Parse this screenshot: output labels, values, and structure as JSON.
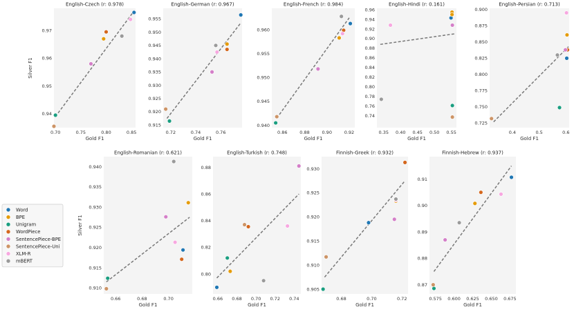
{
  "chart_data": {
    "type": "scatter",
    "xlabel": "Gold F1",
    "ylabel": "Silver F1",
    "legend": {
      "position": "left",
      "entries": [
        {
          "key": "word",
          "label": "Word",
          "color": "#1f77b4"
        },
        {
          "key": "bpe",
          "label": "BPE",
          "color": "#e59c0b"
        },
        {
          "key": "unigram",
          "label": "Unigram",
          "color": "#1a9e80"
        },
        {
          "key": "wordpiece",
          "label": "WordPiece",
          "color": "#d4671e"
        },
        {
          "key": "sp_bpe",
          "label": "SentencePiece-BPE",
          "color": "#d47fc8"
        },
        {
          "key": "sp_uni",
          "label": "SentencePiece-Uni",
          "color": "#cd9466"
        },
        {
          "key": "xlmr",
          "label": "XLM-R",
          "color": "#f7a8e0"
        },
        {
          "key": "mbert",
          "label": "mBERT",
          "color": "#9a9a9a"
        }
      ]
    },
    "panels": [
      {
        "title": "English-Czech (r: 0.978)",
        "xlim": [
          0.697,
          0.858
        ],
        "ylim": [
          0.935,
          0.978
        ],
        "xticks": [
          0.7,
          0.75,
          0.8,
          0.85
        ],
        "xtick_labels": [
          "0.70",
          "0.75",
          "0.80",
          "0.85"
        ],
        "yticks": [
          0.94,
          0.95,
          0.96,
          0.97
        ],
        "ytick_labels": [
          "0.94",
          "0.95",
          "0.96",
          "0.97"
        ],
        "show_ylabel": true,
        "fit": [
          [
            0.7,
            0.939
          ],
          [
            0.855,
            0.977
          ]
        ],
        "points": [
          {
            "series": "word",
            "x": 0.855,
            "y": 0.9765
          },
          {
            "series": "bpe",
            "x": 0.795,
            "y": 0.967
          },
          {
            "series": "unigram",
            "x": 0.7,
            "y": 0.9395
          },
          {
            "series": "wordpiece",
            "x": 0.8,
            "y": 0.9695
          },
          {
            "series": "sp_bpe",
            "x": 0.77,
            "y": 0.958
          },
          {
            "series": "sp_uni",
            "x": 0.697,
            "y": 0.9355
          },
          {
            "series": "xlmr",
            "x": 0.848,
            "y": 0.974
          },
          {
            "series": "mbert",
            "x": 0.831,
            "y": 0.968
          }
        ]
      },
      {
        "title": "English-German (r: 0.967)",
        "xlim": [
          0.714,
          0.777
        ],
        "ylim": [
          0.914,
          0.959
        ],
        "xticks": [
          0.72,
          0.74,
          0.76
        ],
        "xtick_labels": [
          "0.72",
          "0.74",
          "0.76"
        ],
        "yticks": [
          0.915,
          0.92,
          0.925,
          0.93,
          0.935,
          0.94,
          0.945,
          0.95,
          0.955
        ],
        "ytick_labels": [
          "0.915",
          "0.920",
          "0.925",
          "0.930",
          "0.935",
          "0.940",
          "0.945",
          "0.950",
          "0.955"
        ],
        "show_ylabel": false,
        "fit": [
          [
            0.717,
            0.9175
          ],
          [
            0.776,
            0.9535
          ]
        ],
        "points": [
          {
            "series": "word",
            "x": 0.776,
            "y": 0.9565
          },
          {
            "series": "bpe",
            "x": 0.765,
            "y": 0.9455
          },
          {
            "series": "unigram",
            "x": 0.719,
            "y": 0.9165
          },
          {
            "series": "wordpiece",
            "x": 0.765,
            "y": 0.9435
          },
          {
            "series": "sp_bpe",
            "x": 0.753,
            "y": 0.935
          },
          {
            "series": "sp_uni",
            "x": 0.716,
            "y": 0.921
          },
          {
            "series": "xlmr",
            "x": 0.757,
            "y": 0.9425
          },
          {
            "series": "mbert",
            "x": 0.756,
            "y": 0.945
          }
        ]
      },
      {
        "title": "English-French (r: 0.984)",
        "xlim": [
          0.8505,
          0.925
        ],
        "ylim": [
          0.9395,
          0.9645
        ],
        "xticks": [
          0.86,
          0.88,
          0.9,
          0.92
        ],
        "xtick_labels": [
          "0.86",
          "0.88",
          "0.90",
          "0.92"
        ],
        "yticks": [
          0.94,
          0.945,
          0.95,
          0.955,
          0.96
        ],
        "ytick_labels": [
          "0.940",
          "0.945",
          "0.950",
          "0.955",
          "0.960"
        ],
        "show_ylabel": false,
        "fit": [
          [
            0.855,
            0.9415
          ],
          [
            0.92,
            0.9625
          ]
        ],
        "points": [
          {
            "series": "word",
            "x": 0.921,
            "y": 0.9613
          },
          {
            "series": "bpe",
            "x": 0.911,
            "y": 0.9583
          },
          {
            "series": "unigram",
            "x": 0.854,
            "y": 0.9405
          },
          {
            "series": "wordpiece",
            "x": 0.915,
            "y": 0.9599
          },
          {
            "series": "sp_bpe",
            "x": 0.892,
            "y": 0.9518
          },
          {
            "series": "sp_uni",
            "x": 0.855,
            "y": 0.9418
          },
          {
            "series": "xlmr",
            "x": 0.914,
            "y": 0.9592
          },
          {
            "series": "mbert",
            "x": 0.913,
            "y": 0.9628
          }
        ]
      },
      {
        "title": "English-Hindi (r: 0.161)",
        "xlim": [
          0.33,
          0.565
        ],
        "ylim": [
          0.715,
          0.963
        ],
        "xticks": [
          0.35,
          0.4,
          0.45,
          0.5,
          0.55
        ],
        "xtick_labels": [
          "0.35",
          "0.40",
          "0.45",
          "0.50",
          "0.55"
        ],
        "yticks": [
          0.74,
          0.76,
          0.78,
          0.8,
          0.82,
          0.84,
          0.86,
          0.88,
          0.9,
          0.92,
          0.94,
          0.96
        ],
        "ytick_labels": [
          "0.74",
          "0.76",
          "0.78",
          "0.80",
          "0.82",
          "0.84",
          "0.86",
          "0.88",
          "0.90",
          "0.92",
          "0.94",
          "0.96"
        ],
        "show_ylabel": false,
        "fit": [
          [
            0.34,
            0.888
          ],
          [
            0.56,
            0.91
          ]
        ],
        "points": [
          {
            "series": "word",
            "x": 0.549,
            "y": 0.943
          },
          {
            "series": "bpe",
            "x": 0.552,
            "y": 0.955
          },
          {
            "series": "bpe",
            "x": 0.552,
            "y": 0.95
          },
          {
            "series": "unigram",
            "x": 0.553,
            "y": 0.761
          },
          {
            "series": "sp_bpe",
            "x": 0.553,
            "y": 0.928
          },
          {
            "series": "sp_uni",
            "x": 0.553,
            "y": 0.737
          },
          {
            "series": "xlmr",
            "x": 0.37,
            "y": 0.928
          },
          {
            "series": "mbert",
            "x": 0.343,
            "y": 0.774
          }
        ]
      },
      {
        "title": "English-Persian (r: 0.713)",
        "xlim": [
          0.315,
          0.612
        ],
        "ylim": [
          0.718,
          0.902
        ],
        "xticks": [
          0.4,
          0.5,
          0.6
        ],
        "xtick_labels": [
          "0.4",
          "0.5",
          "0.6"
        ],
        "yticks": [
          0.725,
          0.75,
          0.775,
          0.8,
          0.825,
          0.85,
          0.875,
          0.9
        ],
        "ytick_labels": [
          "0.725",
          "0.750",
          "0.775",
          "0.800",
          "0.825",
          "0.850",
          "0.875",
          "0.900"
        ],
        "show_ylabel": false,
        "fit": [
          [
            0.33,
            0.727
          ],
          [
            0.61,
            0.843
          ]
        ],
        "points": [
          {
            "series": "word",
            "x": 0.603,
            "y": 0.825
          },
          {
            "series": "bpe",
            "x": 0.604,
            "y": 0.861
          },
          {
            "series": "unigram",
            "x": 0.576,
            "y": 0.749
          },
          {
            "series": "wordpiece",
            "x": 0.606,
            "y": 0.838
          },
          {
            "series": "sp_bpe",
            "x": 0.598,
            "y": 0.838
          },
          {
            "series": "sp_uni",
            "x": 0.322,
            "y": 0.732
          },
          {
            "series": "xlmr",
            "x": 0.602,
            "y": 0.895
          },
          {
            "series": "mbert",
            "x": 0.568,
            "y": 0.83
          }
        ]
      },
      {
        "title": "English-Romanian (r: 0.621)",
        "xlim": [
          0.651,
          0.718
        ],
        "ylim": [
          0.9085,
          0.9425
        ],
        "xticks": [
          0.66,
          0.68,
          0.7
        ],
        "xtick_labels": [
          "0.66",
          "0.68",
          "0.70"
        ],
        "yticks": [
          0.91,
          0.915,
          0.92,
          0.925,
          0.93,
          0.935,
          0.94
        ],
        "ytick_labels": [
          "0.910",
          "0.915",
          "0.920",
          "0.925",
          "0.930",
          "0.935",
          "0.940"
        ],
        "show_ylabel": true,
        "fit": [
          [
            0.653,
            0.9115
          ],
          [
            0.716,
            0.9275
          ]
        ],
        "points": [
          {
            "series": "word",
            "x": 0.711,
            "y": 0.9194
          },
          {
            "series": "bpe",
            "x": 0.715,
            "y": 0.9311
          },
          {
            "series": "unigram",
            "x": 0.654,
            "y": 0.9124
          },
          {
            "series": "wordpiece",
            "x": 0.71,
            "y": 0.9171
          },
          {
            "series": "sp_bpe",
            "x": 0.698,
            "y": 0.9276
          },
          {
            "series": "sp_uni",
            "x": 0.653,
            "y": 0.9098
          },
          {
            "series": "xlmr",
            "x": 0.705,
            "y": 0.9213
          },
          {
            "series": "mbert",
            "x": 0.704,
            "y": 0.9413
          }
        ]
      },
      {
        "title": "English-Turkish (r: 0.748)",
        "xlim": [
          0.655,
          0.747
        ],
        "ylim": [
          0.785,
          0.888
        ],
        "xticks": [
          0.66,
          0.68,
          0.7,
          0.72,
          0.74
        ],
        "xtick_labels": [
          "0.66",
          "0.68",
          "0.70",
          "0.72",
          "0.74"
        ],
        "yticks": [
          0.8,
          0.82,
          0.84,
          0.86,
          0.88
        ],
        "ytick_labels": [
          "0.80",
          "0.82",
          "0.84",
          "0.86",
          "0.88"
        ],
        "show_ylabel": false,
        "fit": [
          [
            0.659,
            0.797
          ],
          [
            0.745,
            0.86
          ]
        ],
        "points": [
          {
            "series": "word",
            "x": 0.659,
            "y": 0.79
          },
          {
            "series": "bpe",
            "x": 0.673,
            "y": 0.802
          },
          {
            "series": "unigram",
            "x": 0.67,
            "y": 0.812
          },
          {
            "series": "wordpiece",
            "x": 0.692,
            "y": 0.8355
          },
          {
            "series": "sp_bpe",
            "x": 0.745,
            "y": 0.881
          },
          {
            "series": "sp_uni",
            "x": 0.688,
            "y": 0.837
          },
          {
            "series": "xlmr",
            "x": 0.733,
            "y": 0.836
          },
          {
            "series": "mbert",
            "x": 0.708,
            "y": 0.795
          }
        ]
      },
      {
        "title": "Finnish-Greek (r: 0.932)",
        "xlim": [
          0.667,
          0.724
        ],
        "ylim": [
          0.904,
          0.9325
        ],
        "xticks": [
          0.68,
          0.7,
          0.72
        ],
        "xtick_labels": [
          "0.68",
          "0.70",
          "0.72"
        ],
        "yticks": [
          0.905,
          0.91,
          0.915,
          0.92,
          0.925,
          0.93
        ],
        "ytick_labels": [
          "0.905",
          "0.910",
          "0.915",
          "0.920",
          "0.925",
          "0.930"
        ],
        "show_ylabel": false,
        "fit": [
          [
            0.669,
            0.9075
          ],
          [
            0.722,
            0.9275
          ]
        ],
        "points": [
          {
            "series": "word",
            "x": 0.698,
            "y": 0.9188
          },
          {
            "series": "bpe",
            "x": 0.716,
            "y": 0.9233
          },
          {
            "series": "unigram",
            "x": 0.668,
            "y": 0.905
          },
          {
            "series": "wordpiece",
            "x": 0.722,
            "y": 0.9313
          },
          {
            "series": "sp_bpe",
            "x": 0.715,
            "y": 0.9195
          },
          {
            "series": "sp_uni",
            "x": 0.67,
            "y": 0.9117
          },
          {
            "series": "xlmr",
            "x": 0.716,
            "y": 0.9235
          },
          {
            "series": "mbert",
            "x": 0.716,
            "y": 0.9237
          }
        ]
      },
      {
        "title": "Finnish-Hebrew (r: 0.937)",
        "xlim": [
          0.567,
          0.683
        ],
        "ylim": [
          0.8665,
          0.9185
        ],
        "xticks": [
          0.575,
          0.6,
          0.625,
          0.65,
          0.675
        ],
        "xtick_labels": [
          "0.575",
          "0.600",
          "0.625",
          "0.650",
          "0.675"
        ],
        "yticks": [
          0.87,
          0.88,
          0.89,
          0.9,
          0.91
        ],
        "ytick_labels": [
          "0.87",
          "0.88",
          "0.89",
          "0.90",
          "0.91"
        ],
        "show_ylabel": false,
        "fit": [
          [
            0.573,
            0.875
          ],
          [
            0.677,
            0.915
          ]
        ],
        "points": [
          {
            "series": "word",
            "x": 0.677,
            "y": 0.9107
          },
          {
            "series": "bpe",
            "x": 0.628,
            "y": 0.9008
          },
          {
            "series": "unigram",
            "x": 0.573,
            "y": 0.8686
          },
          {
            "series": "wordpiece",
            "x": 0.636,
            "y": 0.905
          },
          {
            "series": "sp_bpe",
            "x": 0.588,
            "y": 0.887
          },
          {
            "series": "sp_uni",
            "x": 0.572,
            "y": 0.87
          },
          {
            "series": "xlmr",
            "x": 0.663,
            "y": 0.9043
          },
          {
            "series": "mbert",
            "x": 0.607,
            "y": 0.8935
          }
        ]
      }
    ]
  }
}
